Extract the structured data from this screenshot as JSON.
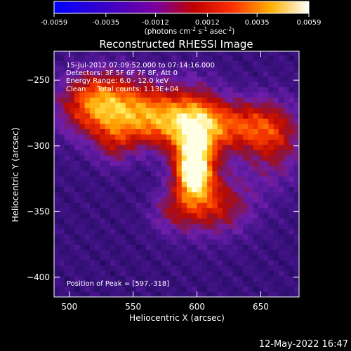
{
  "chart_data": {
    "type": "heatmap",
    "title": "Reconstructed RHESSI Image",
    "xlabel": "Heliocentric X (arcsec)",
    "ylabel": "Heliocentric Y (arcsec)",
    "xlim": [
      488,
      680
    ],
    "ylim": [
      -415,
      -228
    ],
    "xticks": [
      500,
      550,
      600,
      650
    ],
    "yticks": [
      -250,
      -300,
      -350,
      -400
    ],
    "colorbar": {
      "range": [
        -0.0059,
        0.0059
      ],
      "ticks": [
        "-0.0059",
        "-0.0035",
        "-0.0012",
        "0.0012",
        "0.0035",
        "0.0059"
      ],
      "unit_label_parts": [
        "(photons cm",
        "-2",
        " s",
        "-1",
        " asec",
        "-2",
        ")"
      ]
    },
    "annotations": {
      "time_range": "15-Jul-2012 07:09:52.000 to 07:14:16.000",
      "detectors": "Detectors: 3F 5F 6F 7F 8F, Att 0",
      "energy_range": "Energy Range: 6.0 - 12.0 keV",
      "clean_counts": "Clean     Total counts: 1.13E+04",
      "peak_position": "Position of Peak = [597,-318]"
    },
    "footer_date": "12-May-2022 16:47",
    "peak": [
      597,
      -318
    ],
    "colors": {
      "background": "#000000",
      "axes": "#ffffff"
    }
  }
}
